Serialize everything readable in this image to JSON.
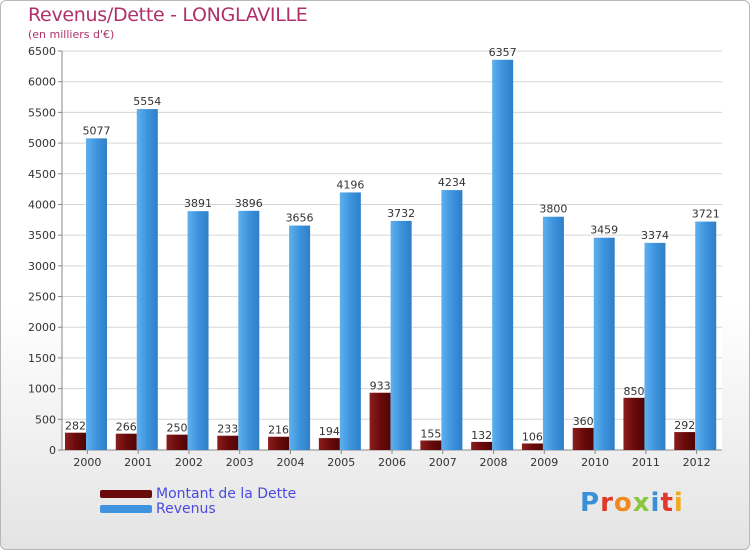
{
  "header": {
    "title": "Revenus/Dette - LONGLAVILLE",
    "subtitle": "(en milliers d'€)"
  },
  "colors": {
    "dette": "#6b0a0a",
    "revenus": "#3d93dd",
    "title": "#b0306a",
    "legend_text": "#4a4adf"
  },
  "chart_data": {
    "type": "bar",
    "categories": [
      "2000",
      "2001",
      "2002",
      "2003",
      "2004",
      "2005",
      "2006",
      "2007",
      "2008",
      "2009",
      "2010",
      "2011",
      "2012"
    ],
    "series": [
      {
        "name": "Montant de la Dette",
        "values": [
          282,
          266,
          250,
          233,
          216,
          194,
          933,
          155,
          132,
          106,
          360,
          850,
          292
        ]
      },
      {
        "name": "Revenus",
        "values": [
          5077,
          5554,
          3891,
          3896,
          3656,
          4196,
          3732,
          4234,
          6357,
          3800,
          3459,
          3374,
          3721
        ]
      }
    ],
    "yticks": [
      0,
      500,
      1000,
      1500,
      2000,
      2500,
      3000,
      3500,
      4000,
      4500,
      5000,
      5500,
      6000,
      6500
    ],
    "ylim": [
      0,
      6500
    ],
    "grid": true,
    "legend_position": "bottom-left"
  },
  "legend": {
    "dette_label": "Montant de la Dette",
    "revenus_label": "Revenus"
  },
  "logo": {
    "letters": [
      "P",
      "r",
      "o",
      "x",
      "i",
      "t",
      "i"
    ],
    "colors": [
      "#3a8fd9",
      "#e0392b",
      "#f08a1c",
      "#8cc63f",
      "#3a8fd9",
      "#e0392b",
      "#f0a81c"
    ]
  }
}
